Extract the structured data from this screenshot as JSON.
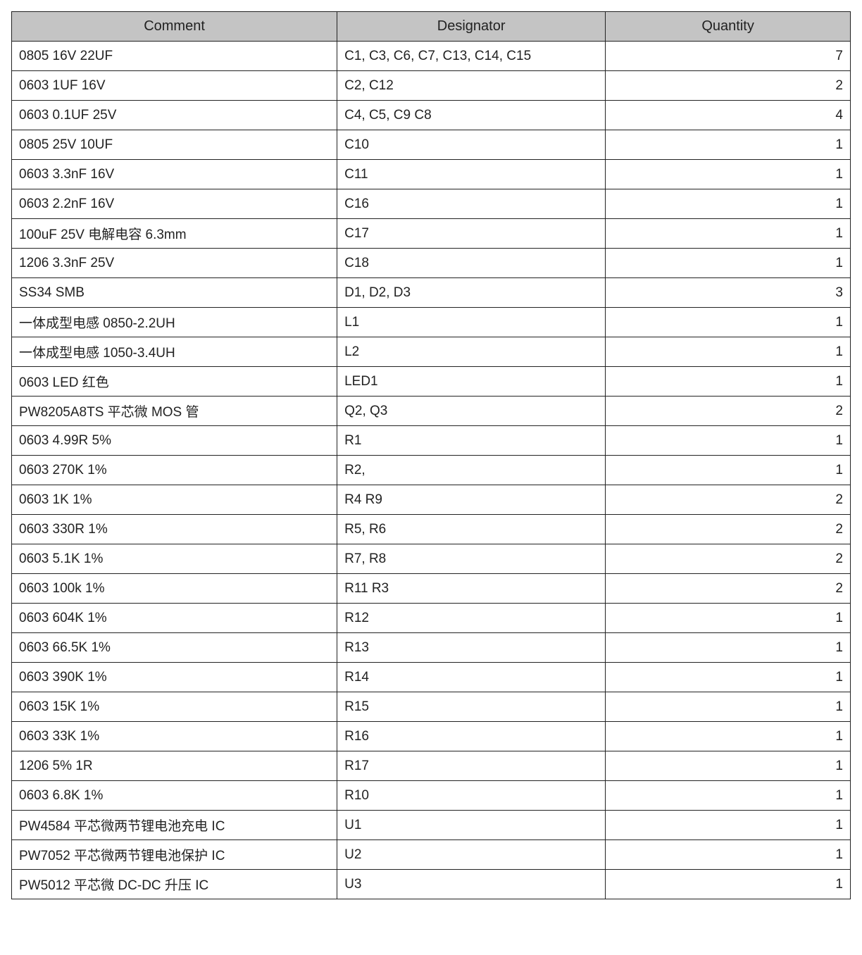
{
  "table": {
    "type": "table",
    "header_bg": "#c4c4c4",
    "border_color": "#222222",
    "font_family": "Segoe UI / Microsoft YaHei",
    "font_size_pt": 14,
    "header_font_size_pt": 15,
    "column_widths_pct": [
      38.8,
      32.0,
      29.2
    ],
    "column_alignments": [
      "left",
      "left",
      "right"
    ],
    "columns": [
      "Comment",
      "Designator",
      "Quantity"
    ],
    "rows": [
      [
        "0805 16V   22UF",
        "C1, C3, C6, C7, C13, C14, C15",
        "7"
      ],
      [
        "0603 1UF    16V",
        "C2, C12",
        "2"
      ],
      [
        "0603 0.1UF    25V",
        "C4, C5, C9 C8",
        "4"
      ],
      [
        "0805 25V    10UF",
        "C10",
        "1"
      ],
      [
        "0603 3.3nF    16V",
        "C11",
        "1"
      ],
      [
        "0603 2.2nF    16V",
        "C16",
        "1"
      ],
      [
        "100uF 25V 电解电容  6.3mm",
        "C17",
        "1"
      ],
      [
        "1206 3.3nF 25V",
        "C18",
        "1"
      ],
      [
        "SS34    SMB",
        "D1, D2, D3",
        "3"
      ],
      [
        "一体成型电感 0850-2.2UH",
        "L1",
        "1"
      ],
      [
        "一体成型电感 1050-3.4UH",
        "L2",
        "1"
      ],
      [
        "0603 LED  红色",
        "LED1",
        "1"
      ],
      [
        "PW8205A8TS 平芯微 MOS 管",
        "Q2, Q3",
        "2"
      ],
      [
        "0603 4.99R 5%",
        "R1",
        "1"
      ],
      [
        "0603 270K 1%",
        "R2,",
        "1"
      ],
      [
        "0603 1K 1%",
        "R4 R9",
        "2"
      ],
      [
        "0603 330R 1%",
        "R5, R6",
        "2"
      ],
      [
        "0603 5.1K 1%",
        "R7, R8",
        "2"
      ],
      [
        "0603 100k 1%",
        "R11    R3",
        "2"
      ],
      [
        "0603 604K 1%",
        "R12",
        "1"
      ],
      [
        "0603 66.5K 1%",
        "R13",
        "1"
      ],
      [
        "0603 390K 1%",
        "R14",
        "1"
      ],
      [
        "0603 15K 1%",
        "R15",
        "1"
      ],
      [
        "0603 33K 1%",
        "R16",
        "1"
      ],
      [
        "1206 5% 1R",
        "R17",
        "1"
      ],
      [
        "0603 6.8K 1%",
        "R10",
        "1"
      ],
      [
        "PW4584 平芯微两节锂电池充电 IC",
        "U1",
        "1"
      ],
      [
        "PW7052 平芯微两节锂电池保护 IC",
        "U2",
        "1"
      ],
      [
        "PW5012 平芯微 DC-DC 升压 IC",
        "U3",
        "1"
      ]
    ]
  }
}
